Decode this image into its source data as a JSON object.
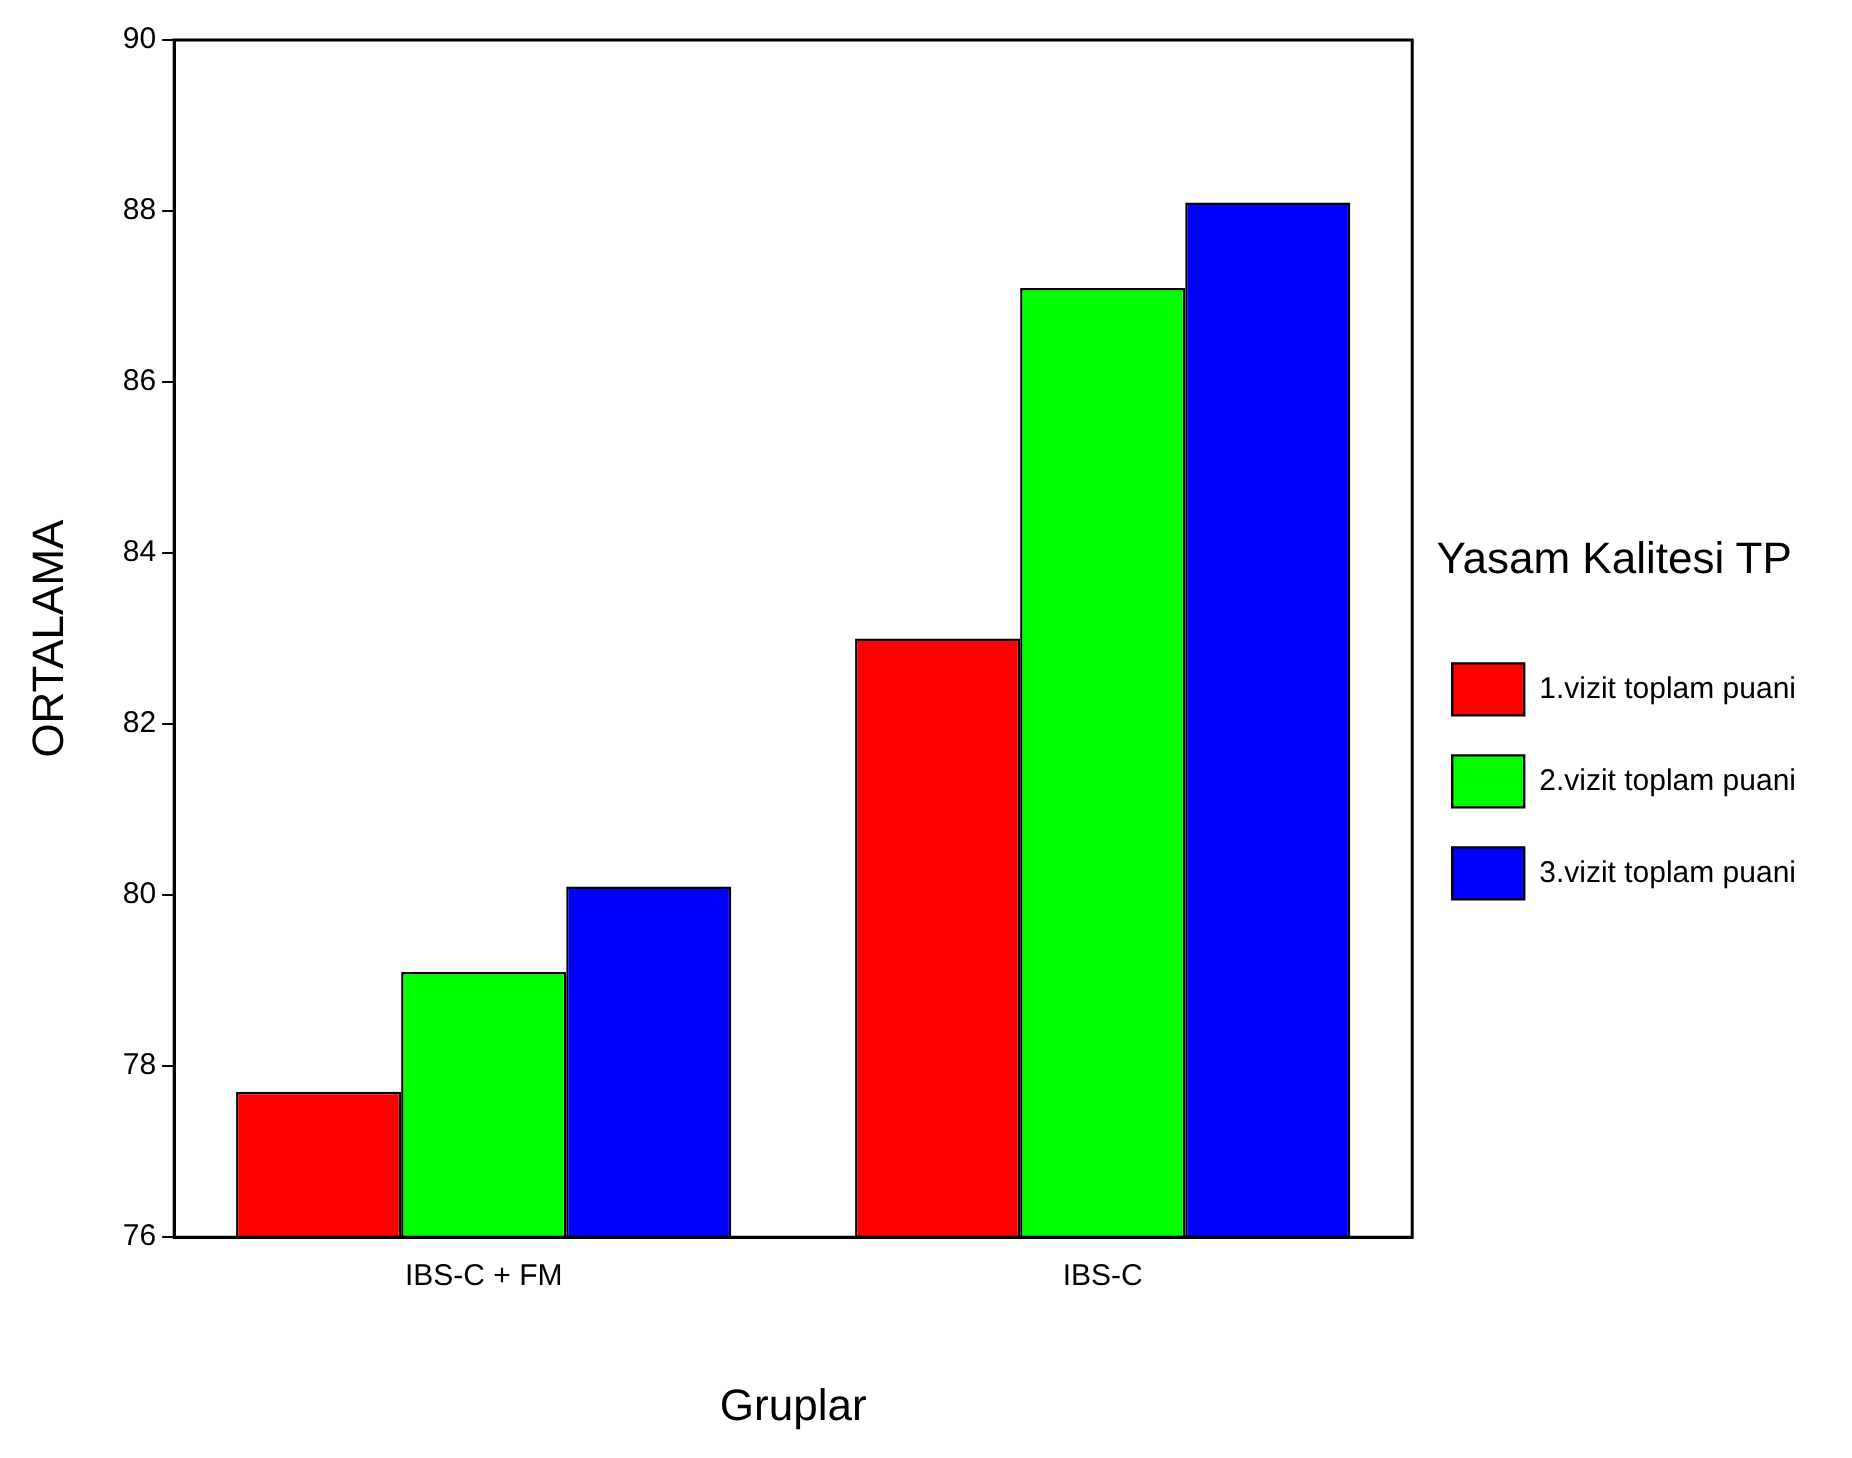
{
  "chart_data": {
    "type": "bar",
    "xlabel": "Gruplar",
    "ylabel": "ORTALAMA",
    "legend_title": "Yasam Kalitesi TP",
    "categories": [
      "IBS-C + FM",
      "IBS-C"
    ],
    "series": [
      {
        "name": "1.vizit toplam puani",
        "color": "#ff0000",
        "values": [
          77.7,
          83.0
        ]
      },
      {
        "name": "2.vizit toplam puani",
        "color": "#00ff00",
        "values": [
          79.1,
          87.1
        ]
      },
      {
        "name": "3.vizit toplam puani",
        "color": "#0000ff",
        "values": [
          80.1,
          88.1
        ]
      }
    ],
    "ylim": [
      76,
      90
    ],
    "yticks": [
      76,
      78,
      80,
      82,
      84,
      86,
      88,
      90
    ],
    "grid": false,
    "legend": "right"
  }
}
